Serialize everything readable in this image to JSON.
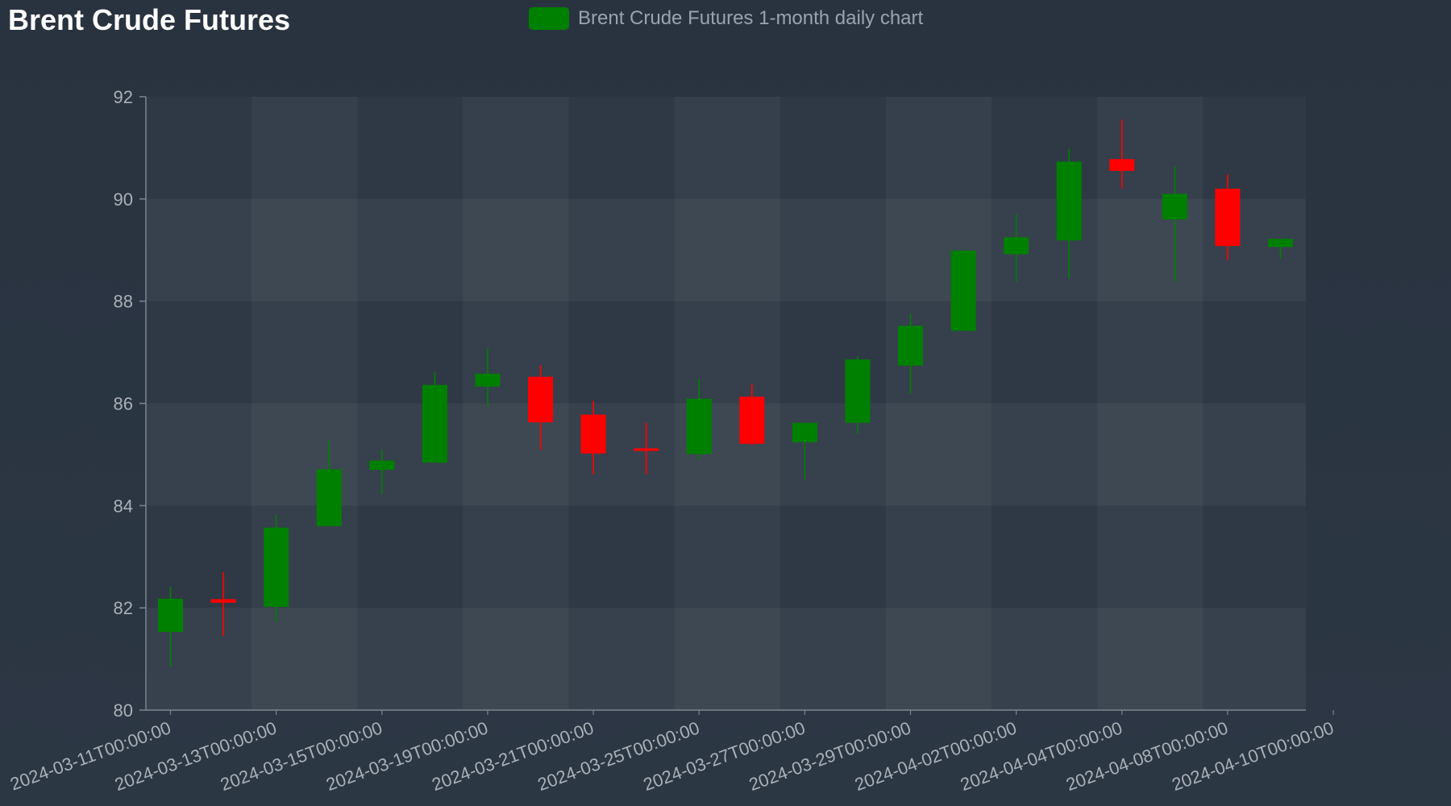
{
  "title": "Brent Crude Futures",
  "legend": {
    "label": "Brent Crude Futures 1-month daily chart",
    "color": "#008000"
  },
  "colors": {
    "up": "#008000",
    "down": "#ff0000",
    "axis": "#7c8590",
    "tick_text": "#a9b0b8"
  },
  "chart_data": {
    "type": "candlestick",
    "title": "Brent Crude Futures",
    "ylim": [
      80,
      92
    ],
    "yticks": [
      80,
      82,
      84,
      86,
      88,
      90,
      92
    ],
    "grid": true,
    "legend_position": "top-center",
    "xtick_labels": [
      "2024-03-11T00:00:00",
      "2024-03-13T00:00:00",
      "2024-03-15T00:00:00",
      "2024-03-19T00:00:00",
      "2024-03-21T00:00:00",
      "2024-03-25T00:00:00",
      "2024-03-27T00:00:00",
      "2024-03-29T00:00:00",
      "2024-04-02T00:00:00",
      "2024-04-04T00:00:00",
      "2024-04-08T00:00:00",
      "2024-04-10T00:00:00"
    ],
    "candles": [
      {
        "date": "2024-03-11",
        "open": 81.53,
        "high": 82.42,
        "low": 80.85,
        "close": 82.18
      },
      {
        "date": "2024-03-12",
        "open": 82.17,
        "high": 82.7,
        "low": 81.45,
        "close": 82.1
      },
      {
        "date": "2024-03-13",
        "open": 82.02,
        "high": 83.82,
        "low": 81.72,
        "close": 83.57
      },
      {
        "date": "2024-03-14",
        "open": 83.6,
        "high": 85.27,
        "low": null,
        "close": 84.71
      },
      {
        "date": "2024-03-15",
        "open": 84.7,
        "high": 85.1,
        "low": 84.22,
        "close": 84.88
      },
      {
        "date": "2024-03-18",
        "open": 84.84,
        "high": 86.62,
        "low": null,
        "close": 86.36
      },
      {
        "date": "2024-03-19",
        "open": 86.33,
        "high": 87.08,
        "low": 85.93,
        "close": 86.58
      },
      {
        "date": "2024-03-20",
        "open": 86.52,
        "high": 86.75,
        "low": 85.09,
        "close": 85.63
      },
      {
        "date": "2024-03-21",
        "open": 85.78,
        "high": 86.05,
        "low": 84.61,
        "close": 85.02
      },
      {
        "date": "2024-03-22",
        "open": 85.12,
        "high": 85.62,
        "low": 84.61,
        "close": 85.07
      },
      {
        "date": "2024-03-25",
        "open": 85.01,
        "high": 86.48,
        "low": 84.91,
        "close": 86.09
      },
      {
        "date": "2024-03-26",
        "open": 86.13,
        "high": 86.38,
        "low": 85.18,
        "close": 85.21
      },
      {
        "date": "2024-03-27",
        "open": 85.24,
        "high": 85.62,
        "low": 84.52,
        "close": 85.62
      },
      {
        "date": "2024-03-28",
        "open": 85.62,
        "high": 86.92,
        "low": 85.4,
        "close": 86.86
      },
      {
        "date": "2024-04-01",
        "open": 86.74,
        "high": 87.75,
        "low": 86.2,
        "close": 87.52
      },
      {
        "date": "2024-04-02",
        "open": 87.42,
        "high": 89.0,
        "low": null,
        "close": 88.99
      },
      {
        "date": "2024-04-03",
        "open": 88.92,
        "high": 89.7,
        "low": 88.38,
        "close": 89.25
      },
      {
        "date": "2024-04-04",
        "open": 89.19,
        "high": 90.98,
        "low": 88.44,
        "close": 90.73
      },
      {
        "date": "2024-04-05",
        "open": 90.78,
        "high": 91.55,
        "low": 90.2,
        "close": 90.55
      },
      {
        "date": "2024-04-08",
        "open": 89.6,
        "high": 90.65,
        "low": 88.38,
        "close": 90.1
      },
      {
        "date": "2024-04-09",
        "open": 90.2,
        "high": 90.48,
        "low": 88.8,
        "close": 89.08
      },
      {
        "date": "2024-04-10",
        "open": 89.06,
        "high": 89.22,
        "low": 88.83,
        "close": 89.22
      }
    ]
  }
}
